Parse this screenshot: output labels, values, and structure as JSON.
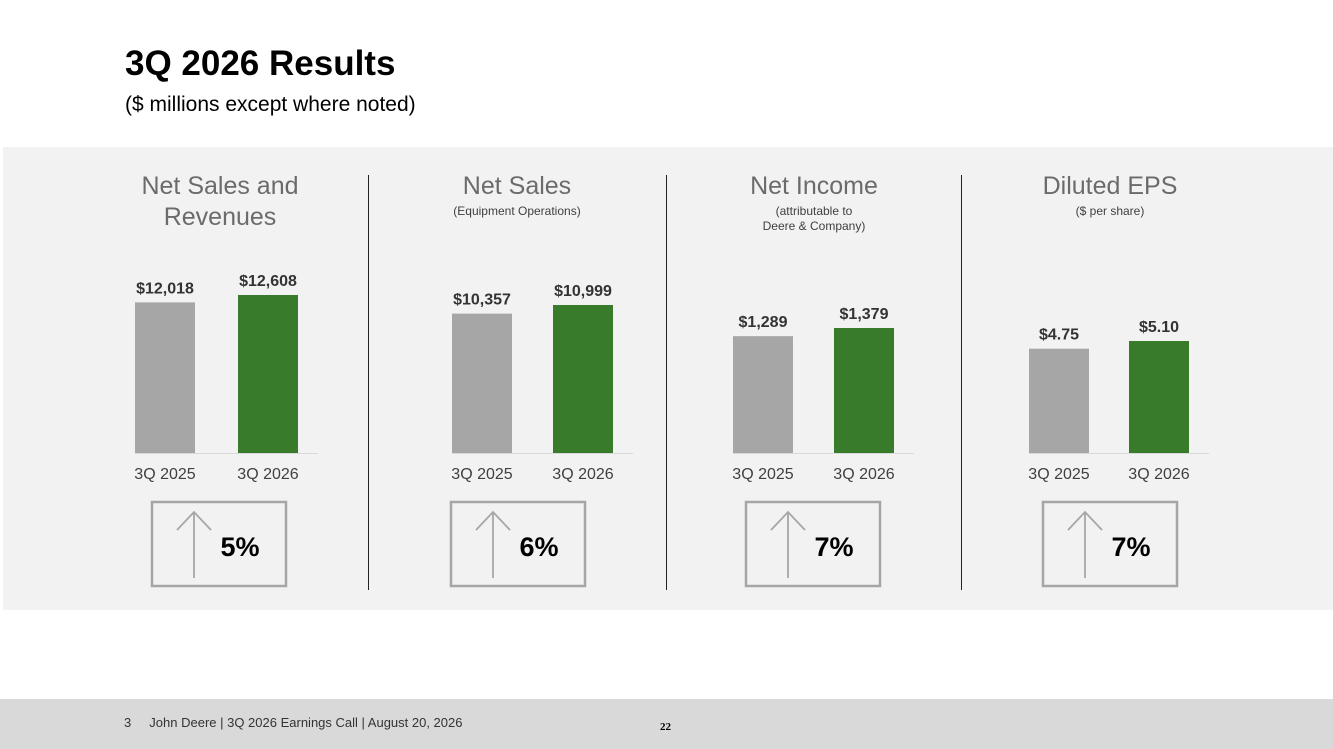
{
  "header": {
    "title": "3Q 2026 Results",
    "subtitle": "($ millions except where noted)"
  },
  "colors": {
    "prior": "#a6a6a6",
    "current": "#387c2b",
    "panel": "#f2f2f2",
    "arrow_box": "#a6a6a6"
  },
  "chart_data": [
    {
      "type": "bar",
      "title_lines": [
        "Net Sales and",
        "Revenues"
      ],
      "subtitle_lines": [],
      "categories": [
        "3Q 2025",
        "3Q 2026"
      ],
      "values": [
        12018,
        12608
      ],
      "value_labels": [
        "$12,018",
        "$12,608"
      ],
      "change": "5%",
      "change_icon": "up-arrow-icon"
    },
    {
      "type": "bar",
      "title_lines": [
        "Net Sales"
      ],
      "subtitle_lines": [
        "(Equipment Operations)"
      ],
      "categories": [
        "3Q 2025",
        "3Q 2026"
      ],
      "values": [
        10357,
        10999
      ],
      "value_labels": [
        "$10,357",
        "$10,999"
      ],
      "change": "6%",
      "change_icon": "up-arrow-icon"
    },
    {
      "type": "bar",
      "title_lines": [
        "Net Income"
      ],
      "subtitle_lines": [
        "(attributable to",
        "Deere & Company)"
      ],
      "categories": [
        "3Q 2025",
        "3Q 2026"
      ],
      "values": [
        1289,
        1379
      ],
      "value_labels": [
        "$1,289",
        "$1,379"
      ],
      "change": "7%",
      "change_icon": "up-arrow-icon"
    },
    {
      "type": "bar",
      "title_lines": [
        "Diluted EPS"
      ],
      "subtitle_lines": [
        "($ per share)"
      ],
      "categories": [
        "3Q 2025",
        "3Q 2026"
      ],
      "values": [
        4.75,
        5.1
      ],
      "value_labels": [
        "$4.75",
        "$5.10"
      ],
      "change": "7%",
      "change_icon": "up-arrow-icon"
    }
  ],
  "footer": {
    "slide_number": "3",
    "text": "John Deere | 3Q 2026 Earnings Call | August 20, 2026",
    "page": "22"
  }
}
